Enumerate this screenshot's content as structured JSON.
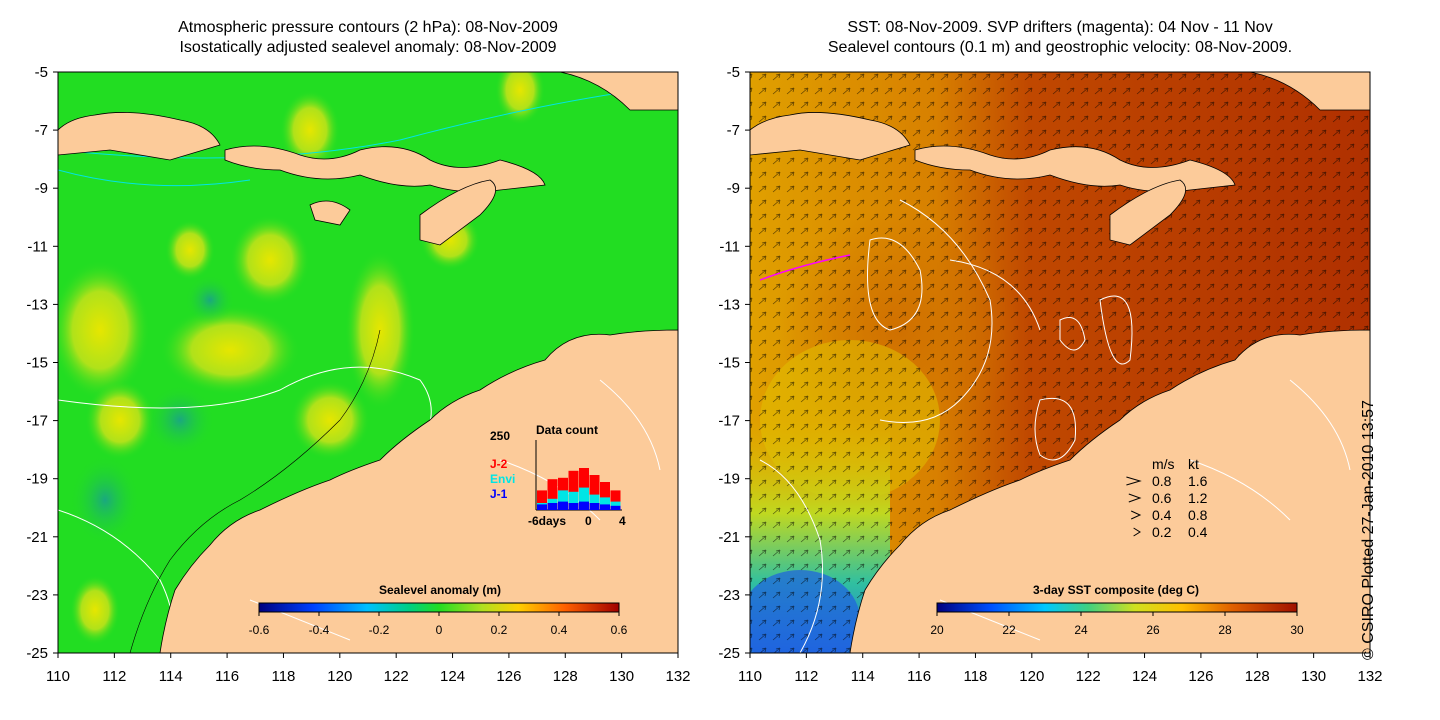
{
  "left_panel": {
    "title_line1": "Atmospheric pressure contours (2 hPa): 08-Nov-2009",
    "title_line2": "Isostatically adjusted sealevel anomaly: 08-Nov-2009",
    "colorbar_label": "Sealevel anomaly (m)",
    "colorbar_ticks": [
      "-0.6",
      "-0.4",
      "-0.2",
      "0",
      "0.2",
      "0.4",
      "0.6"
    ],
    "inset": {
      "title": "Data count",
      "ymax_label": "250",
      "legend": [
        {
          "label": "J-2",
          "color": "#ff0000"
        },
        {
          "label": "Envi",
          "color": "#00e5e5"
        },
        {
          "label": "J-1",
          "color": "#0000ff"
        }
      ],
      "xlabel_left": "-6days",
      "xlabel_mid": "0",
      "xlabel_right": "4",
      "bars": [
        {
          "j1": 20,
          "envi": 25,
          "j2": 70
        },
        {
          "j1": 25,
          "envi": 40,
          "j2": 110
        },
        {
          "j1": 30,
          "envi": 70,
          "j2": 115
        },
        {
          "j1": 25,
          "envi": 65,
          "j2": 140
        },
        {
          "j1": 30,
          "envi": 80,
          "j2": 150
        },
        {
          "j1": 25,
          "envi": 55,
          "j2": 125
        },
        {
          "j1": 20,
          "envi": 45,
          "j2": 100
        },
        {
          "j1": 15,
          "envi": 30,
          "j2": 70
        }
      ]
    }
  },
  "right_panel": {
    "title_line1": "SST: 08-Nov-2009. SVP drifters (magenta): 04 Nov - 11 Nov",
    "title_line2": "Sealevel contours (0.1 m) and geostrophic velocity: 08-Nov-2009.",
    "colorbar_label": "3-day SST composite (deg C)",
    "colorbar_ticks": [
      "20",
      "22",
      "24",
      "26",
      "28",
      "30"
    ],
    "velocity_legend": {
      "header_ms": "m/s",
      "header_kt": "kt",
      "rows": [
        {
          "ms": "0.8",
          "kt": "1.6"
        },
        {
          "ms": "0.6",
          "kt": "1.2"
        },
        {
          "ms": "0.4",
          "kt": "0.8"
        },
        {
          "ms": "0.2",
          "kt": "0.4"
        }
      ]
    }
  },
  "axes": {
    "y_ticks": [
      "-5",
      "-7",
      "-9",
      "-11",
      "-13",
      "-15",
      "-17",
      "-19",
      "-21",
      "-23",
      "-25"
    ],
    "x_ticks": [
      "110",
      "112",
      "114",
      "116",
      "118",
      "120",
      "122",
      "124",
      "126",
      "128",
      "130",
      "132"
    ]
  },
  "credit": "© CSIRO Plotted 27-Jan-2010 13:57",
  "colors": {
    "land": "#fccb9a",
    "sla_base": "#22dd22",
    "sst_base": "#c03c00"
  }
}
